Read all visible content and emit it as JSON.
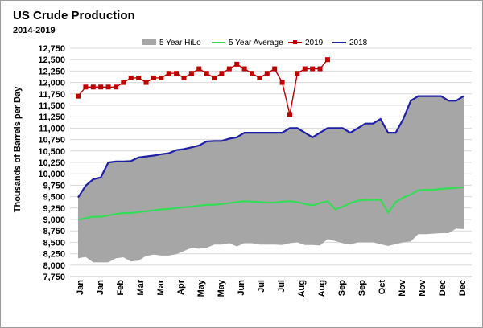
{
  "chart_data": {
    "type": "line",
    "title": "US Crude Production",
    "subtitle": "2014-2019",
    "ylabel": "Thousands of Barrels per Day",
    "xlabel": "",
    "ylim": [
      7750,
      12750
    ],
    "ytick_step": 250,
    "grid": true,
    "legend_position": "top-right",
    "x_tick_labels": [
      "Jan",
      "Jan",
      "Feb",
      "Mar",
      "Mar",
      "Apr",
      "May",
      "May",
      "Jun",
      "Jul",
      "Jul",
      "Aug",
      "Aug",
      "Sep",
      "Sep",
      "Oct",
      "Nov",
      "Nov",
      "Dec",
      "Dec"
    ],
    "weeks": 52,
    "series": [
      {
        "name": "5 Year HiLo",
        "kind": "band",
        "color": "#a6a6a6",
        "high": [
          9480,
          9740,
          9880,
          9920,
          10250,
          10270,
          10270,
          10280,
          10360,
          10380,
          10400,
          10430,
          10450,
          10520,
          10540,
          10580,
          10620,
          10710,
          10720,
          10720,
          10770,
          10800,
          10900,
          10900,
          10900,
          10900,
          10900,
          10900,
          11000,
          11000,
          10900,
          10800,
          10900,
          11000,
          11000,
          11000,
          10900,
          11000,
          11100,
          11100,
          11200,
          10900,
          10900,
          11200,
          11600,
          11700,
          11700,
          11700,
          11700,
          11600,
          11600,
          11700
        ],
        "low": [
          8150,
          8180,
          8060,
          8060,
          8060,
          8150,
          8170,
          8080,
          8100,
          8200,
          8230,
          8210,
          8210,
          8240,
          8310,
          8380,
          8360,
          8380,
          8450,
          8450,
          8480,
          8410,
          8480,
          8480,
          8450,
          8450,
          8450,
          8440,
          8480,
          8500,
          8440,
          8440,
          8430,
          8570,
          8530,
          8480,
          8450,
          8500,
          8500,
          8500,
          8460,
          8420,
          8460,
          8500,
          8520,
          8680,
          8680,
          8690,
          8700,
          8700,
          8800,
          8790
        ]
      },
      {
        "name": "5 Year Average",
        "kind": "line",
        "color": "#33dd55",
        "values": [
          8990,
          9030,
          9060,
          9060,
          9090,
          9120,
          9140,
          9140,
          9160,
          9180,
          9200,
          9220,
          9230,
          9250,
          9270,
          9280,
          9300,
          9320,
          9320,
          9340,
          9360,
          9380,
          9400,
          9390,
          9380,
          9370,
          9370,
          9390,
          9400,
          9380,
          9340,
          9310,
          9360,
          9400,
          9220,
          9280,
          9360,
          9410,
          9430,
          9430,
          9430,
          9150,
          9380,
          9480,
          9550,
          9640,
          9650,
          9650,
          9670,
          9680,
          9690,
          9710
        ]
      },
      {
        "name": "2019",
        "kind": "line-markers",
        "color": "#c00000",
        "values": [
          11700,
          11900,
          11900,
          11900,
          11900,
          11900,
          12000,
          12100,
          12100,
          12000,
          12100,
          12100,
          12200,
          12200,
          12100,
          12200,
          12300,
          12200,
          12100,
          12200,
          12300,
          12400,
          12300,
          12200,
          12100,
          12200,
          12300,
          12000,
          11300,
          12200,
          12300,
          12300,
          12300,
          12500
        ]
      },
      {
        "name": "2018",
        "kind": "line",
        "color": "#1f1fa8",
        "values": [
          9480,
          9740,
          9880,
          9920,
          10250,
          10270,
          10270,
          10280,
          10360,
          10380,
          10400,
          10430,
          10450,
          10520,
          10540,
          10580,
          10620,
          10710,
          10720,
          10720,
          10770,
          10800,
          10900,
          10900,
          10900,
          10900,
          10900,
          10900,
          11000,
          11000,
          10900,
          10800,
          10900,
          11000,
          11000,
          11000,
          10900,
          11000,
          11100,
          11100,
          11200,
          10900,
          10900,
          11200,
          11600,
          11700,
          11700,
          11700,
          11700,
          11600,
          11600,
          11700
        ]
      }
    ]
  }
}
